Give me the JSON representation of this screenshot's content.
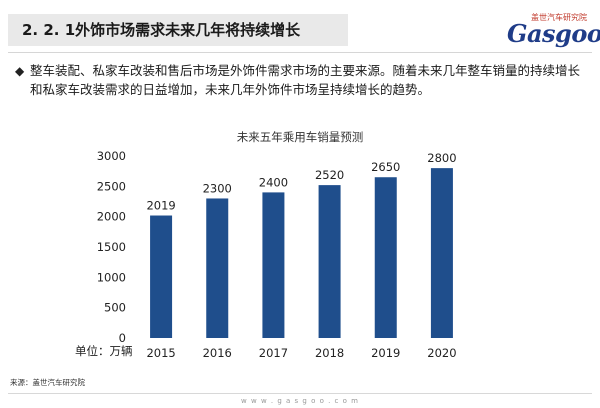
{
  "header": {
    "title": "2. 2. 1外饰市场需求未来几年将持续增长",
    "logo_cn": "盖世汽车研究院",
    "logo_en": "Gasgoo"
  },
  "body": {
    "bullet_icon": "◆",
    "bullet_text": "整车装配、私家车改装和售后市场是外饰件需求市场的主要来源。随着未来几年整车销量的持续增长和私家车改装需求的日益增加，未来几年外饰件市场呈持续增长的趋势。"
  },
  "chart_data": {
    "type": "bar",
    "title": "未来五年乘用车销量预测",
    "categories": [
      "2015",
      "2016",
      "2017",
      "2018",
      "2019",
      "2020"
    ],
    "values": [
      2019,
      2300,
      2400,
      2520,
      2650,
      2800
    ],
    "data_labels": [
      "2019",
      "2300",
      "2400",
      "2520",
      "2650",
      "2800"
    ],
    "yticks": [
      0,
      500,
      1000,
      1500,
      2000,
      2500,
      3000
    ],
    "ylim": [
      0,
      3000
    ],
    "xlabel": "",
    "ylabel": "",
    "unit_label": "单位：万辆",
    "bar_color": "#1f4e8c",
    "grid": false
  },
  "footer": {
    "source": "来源：盖世汽车研究院",
    "url": "w w w . g a s g o o . c o m"
  }
}
